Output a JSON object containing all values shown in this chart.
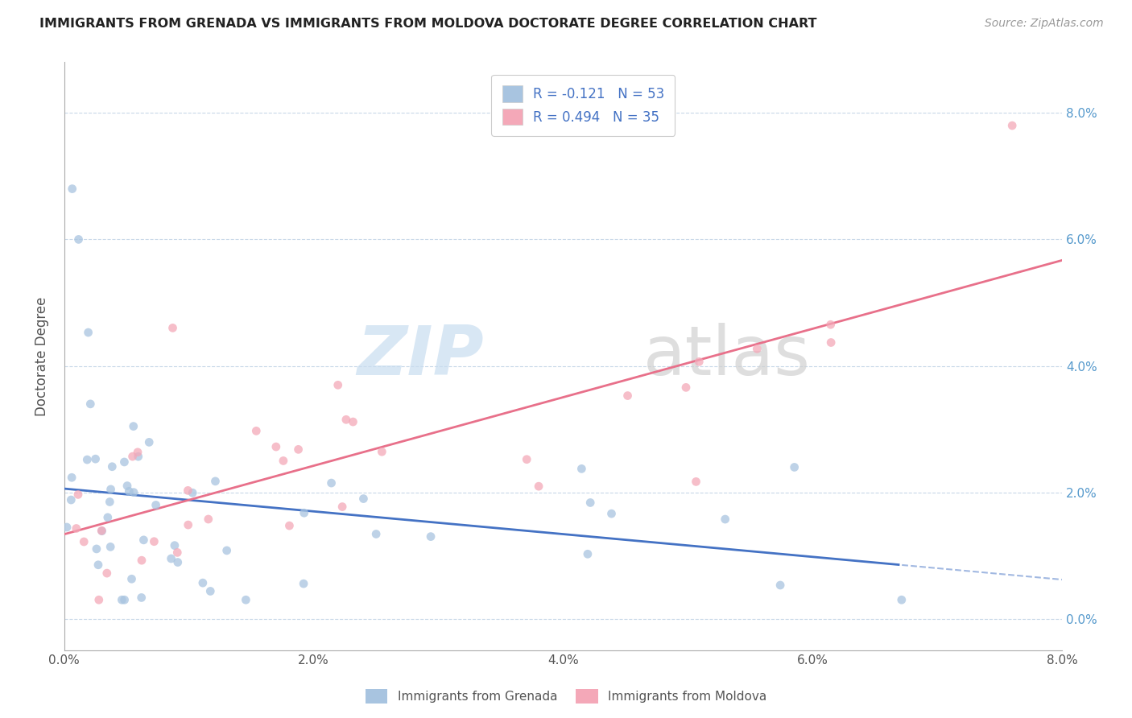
{
  "title": "IMMIGRANTS FROM GRENADA VS IMMIGRANTS FROM MOLDOVA DOCTORATE DEGREE CORRELATION CHART",
  "source": "Source: ZipAtlas.com",
  "ylabel": "Doctorate Degree",
  "xlim": [
    0.0,
    0.08
  ],
  "ylim": [
    -0.004,
    0.088
  ],
  "color_grenada": "#a8c4e0",
  "color_moldova": "#f4a8b8",
  "line_color_grenada": "#4472c4",
  "line_color_moldova": "#e8708a",
  "legend_label1": "Immigrants from Grenada",
  "legend_label2": "Immigrants from Moldova",
  "watermark_zip_color": "#c8ddf0",
  "watermark_atlas_color": "#d0d0d0"
}
